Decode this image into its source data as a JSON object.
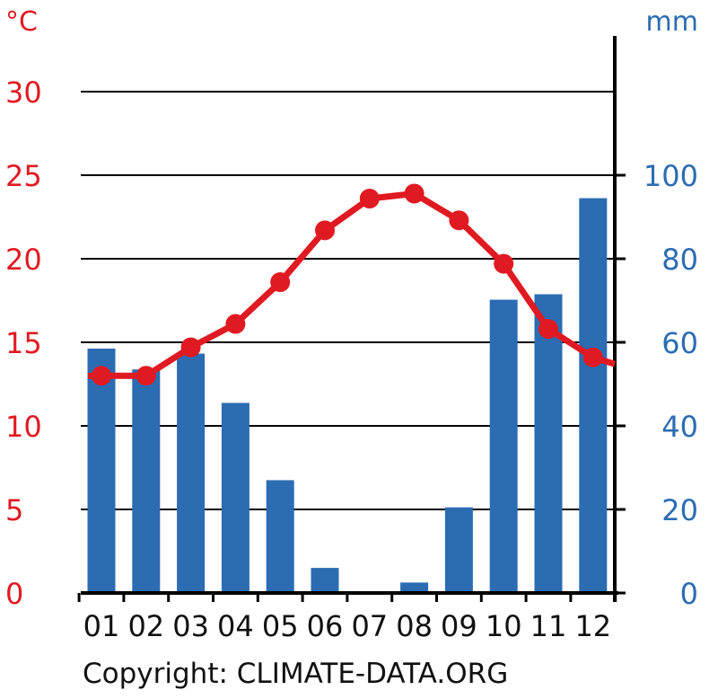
{
  "footer": {
    "copyright": "Copyright: CLIMATE-DATA.ORG"
  },
  "colors": {
    "temperature": "#e01a22",
    "precipitation": "#2b6cb3",
    "grid": "#000000",
    "text": "#111111"
  },
  "chart_data": {
    "type": "bar+line",
    "categories": [
      "01",
      "02",
      "03",
      "04",
      "05",
      "06",
      "07",
      "08",
      "09",
      "10",
      "11",
      "12"
    ],
    "left_axis": {
      "unit": "°C",
      "ylim": [
        0,
        30
      ],
      "ticks": [
        0,
        5,
        10,
        15,
        20,
        25,
        30
      ]
    },
    "right_axis": {
      "unit": "mm",
      "ylim": [
        0,
        120
      ],
      "ticks": [
        0,
        20,
        40,
        60,
        80,
        100
      ]
    },
    "temperature": {
      "type": "line",
      "axis": "left",
      "values": [
        13.0,
        13.0,
        14.7,
        16.1,
        18.6,
        21.7,
        23.6,
        23.9,
        22.3,
        19.7,
        15.8,
        14.1
      ],
      "end_value": 13.7
    },
    "precipitation": {
      "type": "bar",
      "axis": "right",
      "values": [
        58.5,
        53.5,
        57.3,
        45.5,
        27.0,
        6.0,
        0.0,
        2.5,
        20.5,
        70.2,
        71.5,
        94.5
      ]
    },
    "grid": true
  }
}
